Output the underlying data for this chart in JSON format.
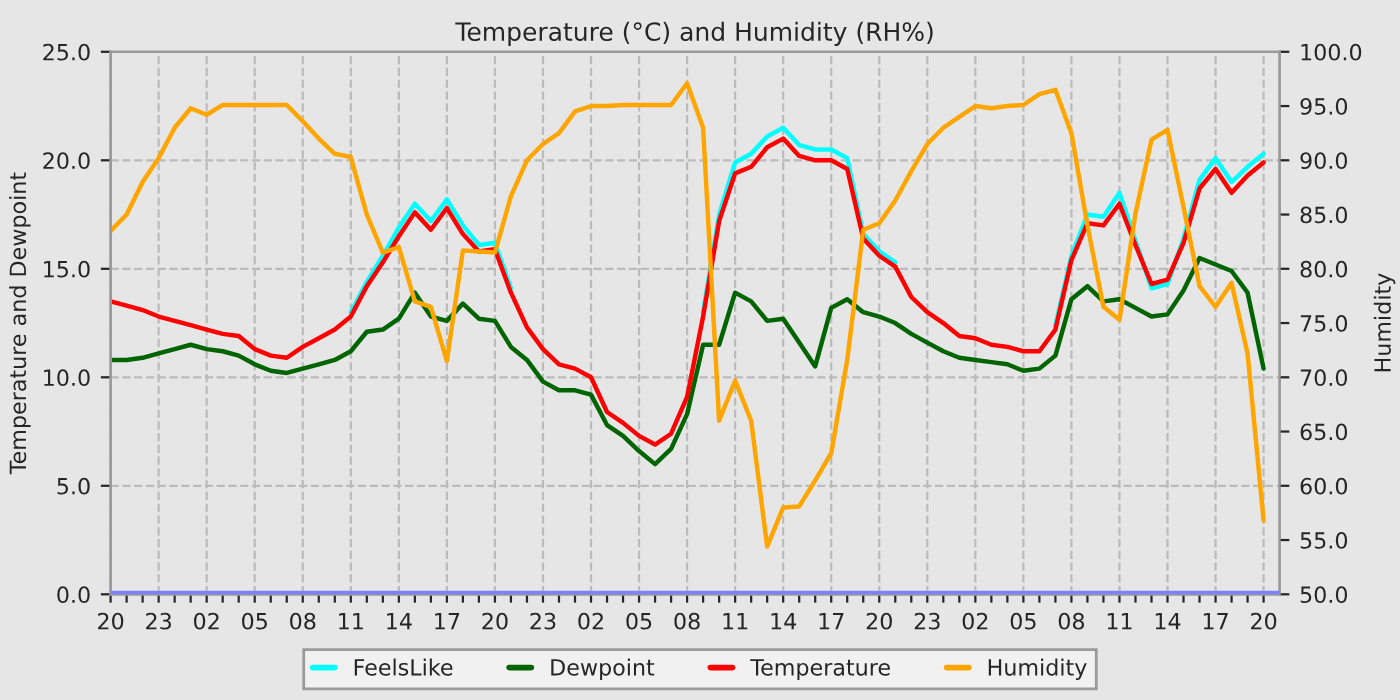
{
  "chart_data": {
    "type": "line",
    "title": "Temperature (°C) and Humidity (RH%)",
    "ylabel": "Temperature and Dewpoint",
    "y2label": "Humidity",
    "categories": [
      "20",
      null,
      null,
      "23",
      null,
      null,
      "02",
      null,
      null,
      "05",
      null,
      null,
      "08",
      null,
      null,
      "11",
      null,
      null,
      "14",
      null,
      null,
      "17",
      null,
      null,
      "20",
      null,
      null,
      "23",
      null,
      null,
      "02",
      null,
      null,
      "05",
      null,
      null,
      "08",
      null,
      null,
      "11",
      null,
      null,
      "14",
      null,
      null,
      "17",
      null,
      null,
      "20",
      null,
      null,
      "23",
      null,
      null,
      "02",
      null,
      null,
      "05",
      null,
      null,
      "08",
      null,
      null,
      "11",
      null,
      null,
      "14",
      null,
      null,
      "17",
      null,
      null,
      "20"
    ],
    "ylim": [
      0,
      25
    ],
    "yticks": [
      {
        "value": 0,
        "label": "0.0"
      },
      {
        "value": 5,
        "label": "5.0"
      },
      {
        "value": 10,
        "label": "10.0"
      },
      {
        "value": 15,
        "label": "15.0"
      },
      {
        "value": 20,
        "label": "20.0"
      },
      {
        "value": 25,
        "label": "25.0"
      }
    ],
    "y2lim": [
      50,
      100
    ],
    "y2ticks": [
      {
        "value": 50,
        "label": "50.0"
      },
      {
        "value": 55,
        "label": "55.0"
      },
      {
        "value": 60,
        "label": "60.0"
      },
      {
        "value": 65,
        "label": "65.0"
      },
      {
        "value": 70,
        "label": "70.0"
      },
      {
        "value": 75,
        "label": "75.0"
      },
      {
        "value": 80,
        "label": "80.0"
      },
      {
        "value": 85,
        "label": "85.0"
      },
      {
        "value": 90,
        "label": "90.0"
      },
      {
        "value": 95,
        "label": "95.0"
      },
      {
        "value": 100,
        "label": "100.0"
      }
    ],
    "grid": true,
    "legend": "bottom",
    "line_style": "solid",
    "ref_lines": [
      {
        "axis": "y",
        "value": 0,
        "color": "#8080ff"
      }
    ],
    "series": [
      {
        "name": "FeelsLike",
        "color": "#00ffff",
        "values": [
          null,
          null,
          null,
          null,
          null,
          null,
          null,
          null,
          null,
          null,
          null,
          null,
          null,
          null,
          null,
          13.0,
          14.4,
          15.6,
          16.9,
          18.0,
          17.2,
          18.2,
          17.0,
          16.1,
          16.2,
          14.1,
          null,
          null,
          null,
          null,
          null,
          null,
          null,
          null,
          null,
          null,
          null,
          13.0,
          17.5,
          19.9,
          20.3,
          21.1,
          21.5,
          20.7,
          20.5,
          20.5,
          20.1,
          16.6,
          15.8,
          15.3,
          null,
          null,
          null,
          null,
          null,
          null,
          null,
          null,
          null,
          12.4,
          15.6,
          17.5,
          17.4,
          18.5,
          16.3,
          14.1,
          14.3,
          16.4,
          19.1,
          20.1,
          19.0,
          19.7,
          20.3
        ]
      },
      {
        "name": "Dewpoint",
        "color": "#006400",
        "values": [
          10.8,
          10.8,
          10.9,
          11.1,
          11.3,
          11.5,
          11.3,
          11.2,
          11.0,
          10.6,
          10.3,
          10.2,
          10.4,
          10.6,
          10.8,
          11.2,
          12.1,
          12.2,
          12.7,
          13.9,
          12.8,
          12.6,
          13.4,
          12.7,
          12.6,
          11.4,
          10.8,
          9.8,
          9.4,
          9.4,
          9.2,
          7.8,
          7.3,
          6.6,
          6.0,
          6.7,
          8.3,
          11.5,
          11.5,
          13.9,
          13.5,
          12.6,
          12.7,
          11.6,
          10.5,
          13.2,
          13.6,
          13.0,
          12.8,
          12.5,
          12.0,
          11.6,
          11.2,
          10.9,
          10.8,
          10.7,
          10.6,
          10.3,
          10.4,
          11.0,
          13.6,
          14.2,
          13.5,
          13.6,
          13.2,
          12.8,
          12.9,
          14.0,
          15.5,
          15.2,
          14.9,
          13.9,
          10.4
        ]
      },
      {
        "name": "Temperature",
        "color": "#ff0000",
        "values": [
          13.5,
          13.3,
          13.1,
          12.8,
          12.6,
          12.4,
          12.2,
          12.0,
          11.9,
          11.3,
          11.0,
          10.9,
          11.4,
          11.8,
          12.2,
          12.8,
          14.2,
          15.3,
          16.5,
          17.6,
          16.8,
          17.8,
          16.6,
          15.8,
          15.9,
          13.9,
          12.3,
          11.3,
          10.6,
          10.4,
          10.0,
          8.4,
          7.9,
          7.3,
          6.9,
          7.4,
          9.1,
          12.8,
          17.2,
          19.4,
          19.7,
          20.6,
          21.0,
          20.2,
          20.0,
          20.0,
          19.6,
          16.4,
          15.6,
          15.1,
          13.7,
          13.0,
          12.5,
          11.9,
          11.8,
          11.5,
          11.4,
          11.2,
          11.2,
          12.2,
          15.4,
          17.1,
          17.0,
          18.0,
          16.1,
          14.3,
          14.5,
          16.2,
          18.7,
          19.6,
          18.5,
          19.3,
          19.9
        ]
      },
      {
        "name": "Humidity",
        "color": "#ffa500",
        "axis": "y2",
        "values": [
          83.5,
          85.0,
          88.0,
          90.2,
          93.0,
          94.8,
          94.2,
          95.1,
          95.1,
          95.1,
          95.1,
          95.1,
          93.6,
          92.0,
          90.6,
          90.3,
          85.0,
          81.5,
          82.0,
          77.0,
          76.5,
          71.5,
          81.7,
          81.6,
          81.5,
          86.7,
          90.0,
          91.5,
          92.5,
          94.5,
          95.0,
          95.0,
          95.1,
          95.1,
          95.1,
          95.1,
          97.1,
          93.0,
          66.0,
          69.7,
          66.0,
          54.4,
          58.0,
          58.1,
          60.5,
          63.0,
          71.6,
          83.6,
          84.2,
          86.3,
          89.0,
          91.5,
          93.0,
          94.0,
          95.0,
          94.8,
          95.0,
          95.1,
          96.1,
          96.5,
          92.5,
          84.0,
          76.5,
          75.3,
          85.1,
          91.9,
          92.8,
          85.7,
          78.4,
          76.5,
          78.7,
          72.2,
          56.8
        ]
      }
    ]
  }
}
